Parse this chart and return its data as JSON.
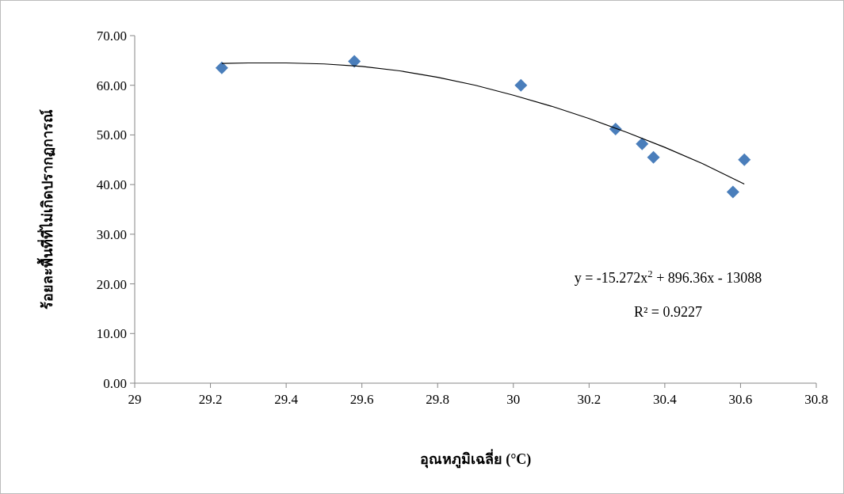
{
  "chart_data": {
    "type": "scatter",
    "xlabel": "อุณหภูมิเฉลี่ย (°C)",
    "ylabel": "ร้อยละพื้นที่ที่ไม่เกิดปรากฏการณ์",
    "xlim": [
      29,
      30.8
    ],
    "xticks": [
      29,
      29.2,
      29.4,
      29.6,
      29.8,
      30,
      30.2,
      30.4,
      30.6,
      30.8
    ],
    "ylim": [
      0,
      70
    ],
    "yticks": [
      {
        "value": 0,
        "label": "0.00"
      },
      {
        "value": 10,
        "label": "10.00"
      },
      {
        "value": 20,
        "label": "20.00"
      },
      {
        "value": 30,
        "label": "30.00"
      },
      {
        "value": 40,
        "label": "40.00"
      },
      {
        "value": 50,
        "label": "50.00"
      },
      {
        "value": 60,
        "label": "60.00"
      },
      {
        "value": 70,
        "label": "70.00"
      }
    ],
    "grid": false,
    "marker": "diamond",
    "series": [
      {
        "color": "#4a7ebb",
        "x": [
          29.23,
          29.58,
          30.02,
          30.27,
          30.34,
          30.37,
          30.58,
          30.61
        ],
        "values": [
          63.5,
          64.8,
          60.0,
          51.2,
          48.2,
          45.5,
          38.5,
          45.0
        ]
      },
      {
        "type": "line",
        "color": "#000000",
        "marker": "none",
        "x": [
          29.23,
          29.3,
          29.4,
          29.5,
          29.6,
          29.7,
          29.8,
          29.9,
          30.0,
          30.1,
          30.2,
          30.3,
          30.4,
          30.5,
          30.61
        ],
        "values": [
          64.4,
          64.5,
          64.5,
          64.3,
          63.8,
          62.9,
          61.6,
          60.0,
          58.0,
          55.8,
          53.3,
          50.5,
          47.5,
          44.2,
          40.1
        ]
      }
    ],
    "annotations": [
      "y = -15.272x$^{2}$ + 896.36x - 13088",
      "R² = 0.9227"
    ]
  }
}
